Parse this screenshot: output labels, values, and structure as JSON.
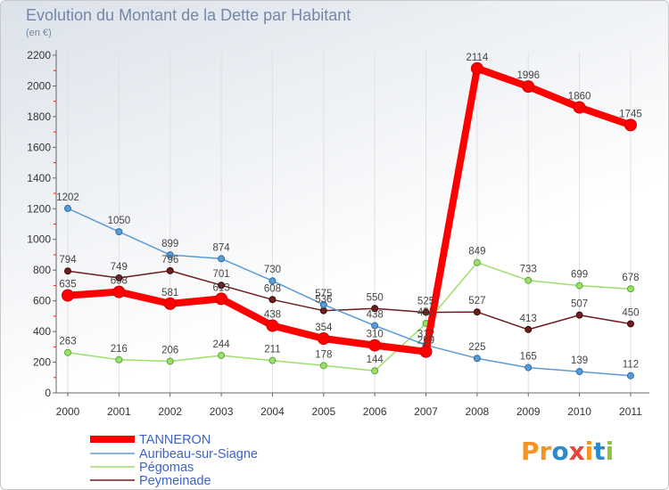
{
  "chart_data": {
    "type": "line",
    "title": "Evolution du Montant de la Dette par Habitant",
    "subtitle": "(en €)",
    "x": [
      "2000",
      "2001",
      "2002",
      "2003",
      "2004",
      "2005",
      "2006",
      "2007",
      "2008",
      "2009",
      "2010",
      "2011"
    ],
    "ylim": [
      0,
      2200
    ],
    "yticks": [
      0,
      200,
      400,
      600,
      800,
      1000,
      1200,
      1400,
      1600,
      1800,
      2000,
      2200
    ],
    "grid": {
      "vertical": true,
      "horizontal": false
    },
    "legend": "bottom-left",
    "data_labels": true,
    "series": [
      {
        "name": "TANNERON",
        "color": "#ff0000",
        "values": [
          635,
          658,
          581,
          613,
          438,
          354,
          310,
          269,
          2114,
          1996,
          1860,
          1745
        ]
      },
      {
        "name": "Auribeau-sur-Siagne",
        "color": "#5b9bd5",
        "values": [
          1202,
          1050,
          899,
          874,
          730,
          575,
          438,
          312,
          225,
          165,
          139,
          112
        ]
      },
      {
        "name": "Pégomas",
        "color": "#9be06a",
        "values": [
          263,
          216,
          206,
          244,
          211,
          178,
          144,
          453,
          849,
          733,
          699,
          678
        ]
      },
      {
        "name": "Peymeinade",
        "color": "#6e1c1c",
        "values": [
          794,
          749,
          796,
          701,
          608,
          536,
          550,
          525,
          527,
          413,
          507,
          450
        ]
      }
    ]
  },
  "logo": {
    "text": "Proxiti",
    "colors": [
      "#f7941d",
      "#f7941d",
      "#2e8bc9",
      "#e8473b",
      "#f7941d",
      "#2e8bc9",
      "#8cc63f"
    ]
  }
}
